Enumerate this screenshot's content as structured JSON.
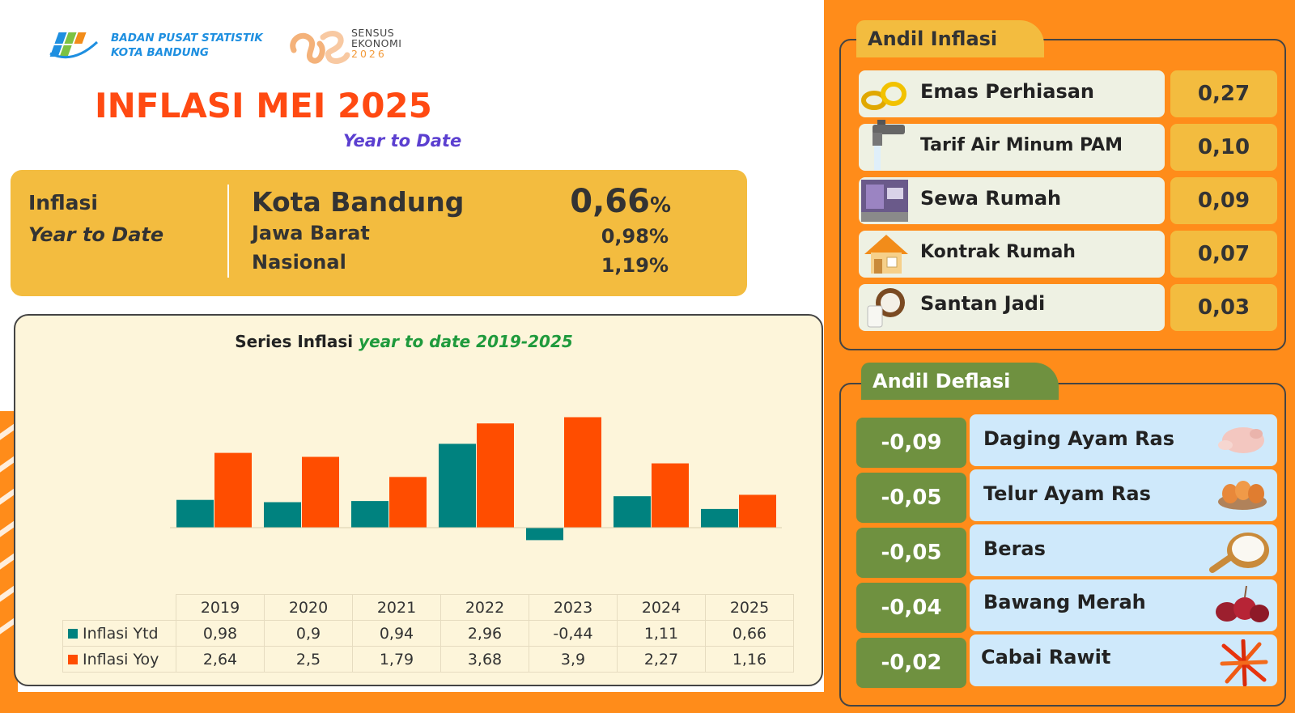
{
  "header": {
    "org_line1": "BADAN PUSAT STATISTIK",
    "org_line2": "KOTA BANDUNG",
    "sensus_line1": "SENSUS",
    "sensus_line2": "EKONOMI",
    "sensus_year": "2026",
    "title": "INFLASI MEI 2025",
    "subtitle": "Year to Date"
  },
  "summary": {
    "label1": "Inflasi",
    "label2": "Year to Date",
    "rows": [
      {
        "region": "Kota Bandung",
        "value": "0,66",
        "unit": "%"
      },
      {
        "region": "Jawa Barat",
        "value": "0,98%"
      },
      {
        "region": "Nasional",
        "value": "1,19%"
      }
    ]
  },
  "chart_data": {
    "type": "bar",
    "title": "Series Inflasi",
    "title_emphasis": "year to date 2019-2025",
    "categories": [
      "2019",
      "2020",
      "2021",
      "2022",
      "2023",
      "2024",
      "2025"
    ],
    "series": [
      {
        "name": "Inflasi Ytd",
        "values": [
          0.98,
          0.9,
          0.94,
          2.96,
          -0.44,
          1.11,
          0.66
        ],
        "color": "#00827f",
        "labels": [
          "0,98",
          "0,9",
          "0,94",
          "2,96",
          "-0,44",
          "1,11",
          "0,66"
        ]
      },
      {
        "name": "Inflasi Yoy",
        "values": [
          2.64,
          2.5,
          1.79,
          3.68,
          3.9,
          2.27,
          1.16
        ],
        "color": "#ff4d00",
        "labels": [
          "2,64",
          "2,5",
          "1,79",
          "3,68",
          "3,9",
          "2,27",
          "1,16"
        ]
      }
    ],
    "ylim": [
      -1,
      4.5
    ],
    "grid": false
  },
  "andil_inflasi": {
    "title": "Andil Inflasi",
    "items": [
      {
        "name": "Emas Perhiasan",
        "value": "0,27",
        "icon": "gold-ring-icon"
      },
      {
        "name": "Tarif Air Minum PAM",
        "value": "0,10",
        "icon": "water-tap-icon"
      },
      {
        "name": "Sewa Rumah",
        "value": "0,09",
        "icon": "room-icon"
      },
      {
        "name": "Kontrak Rumah",
        "value": "0,07",
        "icon": "house-icon"
      },
      {
        "name": "Santan Jadi",
        "value": "0,03",
        "icon": "coconut-milk-icon"
      }
    ]
  },
  "andil_deflasi": {
    "title": "Andil Deflasi",
    "items": [
      {
        "name": "Daging Ayam Ras",
        "value": "-0,09",
        "icon": "chicken-meat-icon"
      },
      {
        "name": "Telur Ayam Ras",
        "value": "-0,05",
        "icon": "egg-icon"
      },
      {
        "name": "Beras",
        "value": "-0,05",
        "icon": "rice-icon"
      },
      {
        "name": "Bawang Merah",
        "value": "-0,04",
        "icon": "shallot-icon"
      },
      {
        "name": "Cabai Rawit",
        "value": "-0,02",
        "icon": "chili-icon"
      }
    ]
  },
  "colors": {
    "accent_orange": "#ff8c1a",
    "title_red": "#ff4a12",
    "summary_yellow": "#f3bc3f",
    "deflasi_green": "#6f9140",
    "deflasi_blue": "#cfe9fb"
  }
}
